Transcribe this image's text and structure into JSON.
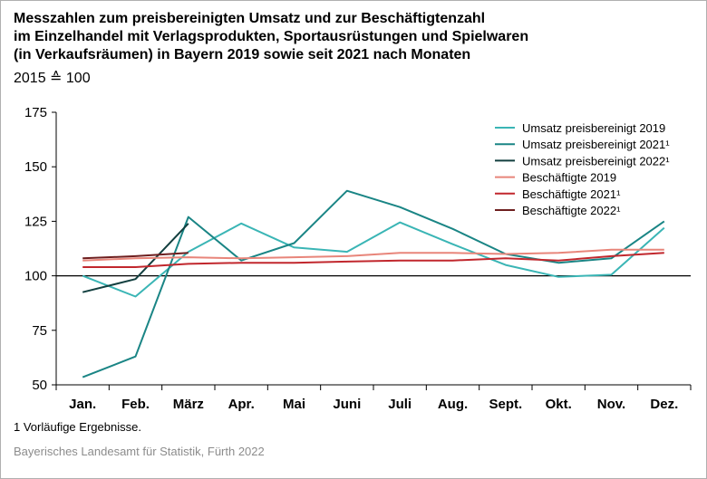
{
  "title_lines": [
    "Messzahlen zum preisbereinigten Umsatz und zur Beschäftigtenzahl",
    "im Einzelhandel mit Verlagsprodukten, Sportausrüstungen und Spielwaren",
    "(in Verkaufsräumen) in Bayern 2019 sowie seit 2021 nach Monaten"
  ],
  "subtitle": "2015 ≙ 100",
  "footnote": "1  Vorläufige Ergebnisse.",
  "source": "Bayerisches Landesamt für Statistik, Fürth 2022",
  "chart_data": {
    "type": "line",
    "categories": [
      "Jan.",
      "Feb.",
      "März",
      "Apr.",
      "Mai",
      "Juni",
      "Juli",
      "Aug.",
      "Sept.",
      "Okt.",
      "Nov.",
      "Dez."
    ],
    "ylim": [
      50,
      175
    ],
    "yticks": [
      50,
      75,
      100,
      125,
      150,
      175
    ],
    "reference_line": 100,
    "grid": false,
    "legend_position": "top-right",
    "series": [
      {
        "name": "Umsatz preisbereinigt 2019",
        "color": "#3ab5b5",
        "values": [
          100,
          90.5,
          111,
          124,
          113,
          111,
          124.5,
          114.5,
          105,
          99.5,
          100.5,
          122
        ]
      },
      {
        "name": "Umsatz preisbereinigt 2021¹",
        "color": "#1a8585",
        "values": [
          53.5,
          63,
          127,
          107,
          115,
          139,
          131.5,
          121.5,
          110,
          106,
          108,
          125
        ]
      },
      {
        "name": "Umsatz preisbereinigt 2022¹",
        "color": "#123f3f",
        "values": [
          92.5,
          98.5,
          124,
          null,
          null,
          null,
          null,
          null,
          null,
          null,
          null,
          null
        ]
      },
      {
        "name": "Beschäftigte 2019",
        "color": "#e8857a",
        "values": [
          107,
          108,
          108.5,
          108,
          108.5,
          109,
          110.5,
          110.5,
          110,
          110.5,
          112,
          112
        ]
      },
      {
        "name": "Beschäftigte 2021¹",
        "color": "#c1272d",
        "values": [
          104,
          104,
          105.5,
          106,
          106,
          106.5,
          107,
          107,
          108,
          107,
          109,
          110.5
        ]
      },
      {
        "name": "Beschäftigte 2022¹",
        "color": "#6e1f1f",
        "values": [
          108,
          109,
          110.5,
          null,
          null,
          null,
          null,
          null,
          null,
          null,
          null,
          null
        ]
      }
    ]
  }
}
